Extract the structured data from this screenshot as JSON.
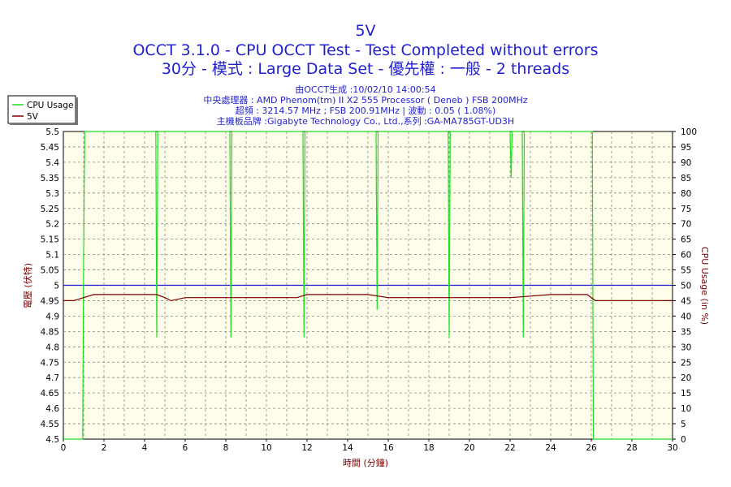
{
  "chart_data": {
    "type": "line",
    "title": "5V",
    "subtitle_lines": [
      "OCCT 3.1.0 - CPU OCCT Test - Test Completed without errors",
      "30分 - 模式 : Large Data Set - 優先權 : 一般 - 2 threads"
    ],
    "info_lines": [
      "由OCCT生成 :10/02/10 14:00:54",
      "中央處理器 : AMD Phenom(tm) II X2 555 Processor ( Deneb ) FSB 200MHz",
      "超頻 : 3214.57 MHz ; FSB 200.91MHz | 波動 : 0.05 ( 1.08%)",
      "主機板品牌 :Gigabyte Technology Co., Ltd.,系列 :GA-MA785GT-UD3H"
    ],
    "xlabel": "時間 (分鐘)",
    "ylabel": "電壓 (伏特)",
    "y2label": "CPU Usage (in %)",
    "xlim": [
      0,
      30
    ],
    "ylim": [
      4.5,
      5.5
    ],
    "y2lim": [
      0,
      100
    ],
    "x_ticks": [
      "0",
      "2",
      "4",
      "6",
      "8",
      "10",
      "12",
      "14",
      "16",
      "18",
      "20",
      "22",
      "24",
      "26",
      "28",
      "30"
    ],
    "y_ticks": [
      "4.5",
      "4.55",
      "4.6",
      "4.65",
      "4.7",
      "4.75",
      "4.8",
      "4.85",
      "4.9",
      "4.95",
      "5",
      "5.05",
      "5.1",
      "5.15",
      "5.2",
      "5.25",
      "5.3",
      "5.35",
      "5.4",
      "5.45",
      "5.5"
    ],
    "y2_ticks": [
      "0",
      "5",
      "10",
      "15",
      "20",
      "25",
      "30",
      "35",
      "40",
      "45",
      "50",
      "55",
      "60",
      "65",
      "70",
      "75",
      "80",
      "85",
      "90",
      "95",
      "100"
    ],
    "grid": true,
    "legend": {
      "placement": "top-left",
      "entries": [
        "CPU Usage",
        "5V"
      ]
    },
    "reference_line": {
      "y": 5.0,
      "color": "#1f1fcf"
    },
    "series": [
      {
        "name": "CPU Usage",
        "axis": "right",
        "color": "#22dd22",
        "points": [
          [
            0.0,
            0
          ],
          [
            0.95,
            0
          ],
          [
            1.0,
            60
          ],
          [
            1.05,
            100
          ],
          [
            4.55,
            100
          ],
          [
            4.6,
            33
          ],
          [
            4.65,
            100
          ],
          [
            8.2,
            100
          ],
          [
            8.25,
            33
          ],
          [
            8.3,
            100
          ],
          [
            11.8,
            100
          ],
          [
            11.85,
            33
          ],
          [
            11.9,
            100
          ],
          [
            15.4,
            100
          ],
          [
            15.45,
            42
          ],
          [
            15.5,
            100
          ],
          [
            18.95,
            100
          ],
          [
            19.0,
            33
          ],
          [
            19.05,
            100
          ],
          [
            22.0,
            100
          ],
          [
            22.05,
            85
          ],
          [
            22.1,
            100
          ],
          [
            22.6,
            100
          ],
          [
            22.65,
            33
          ],
          [
            22.7,
            100
          ],
          [
            26.05,
            100
          ],
          [
            26.1,
            0
          ],
          [
            30.0,
            0
          ]
        ]
      },
      {
        "name": "5V",
        "axis": "left",
        "color": "#7a0000",
        "points": [
          [
            0.0,
            4.95
          ],
          [
            0.5,
            4.95
          ],
          [
            1.0,
            4.96
          ],
          [
            1.5,
            4.97
          ],
          [
            3.0,
            4.97
          ],
          [
            4.6,
            4.97
          ],
          [
            5.0,
            4.96
          ],
          [
            5.3,
            4.95
          ],
          [
            6.0,
            4.96
          ],
          [
            8.0,
            4.96
          ],
          [
            10.0,
            4.96
          ],
          [
            11.5,
            4.96
          ],
          [
            12.0,
            4.97
          ],
          [
            15.0,
            4.97
          ],
          [
            16.0,
            4.96
          ],
          [
            18.0,
            4.96
          ],
          [
            20.0,
            4.96
          ],
          [
            22.0,
            4.96
          ],
          [
            24.0,
            4.97
          ],
          [
            25.8,
            4.97
          ],
          [
            26.2,
            4.95
          ],
          [
            27.0,
            4.95
          ],
          [
            28.0,
            4.95
          ],
          [
            30.0,
            4.95
          ]
        ]
      }
    ]
  },
  "colors": {
    "plot_bg": "#fefde9",
    "grid": "#888888",
    "title": "#1f1fcf",
    "right_axis_label": "#7a0000",
    "left_axis_label": "#7a0000"
  }
}
